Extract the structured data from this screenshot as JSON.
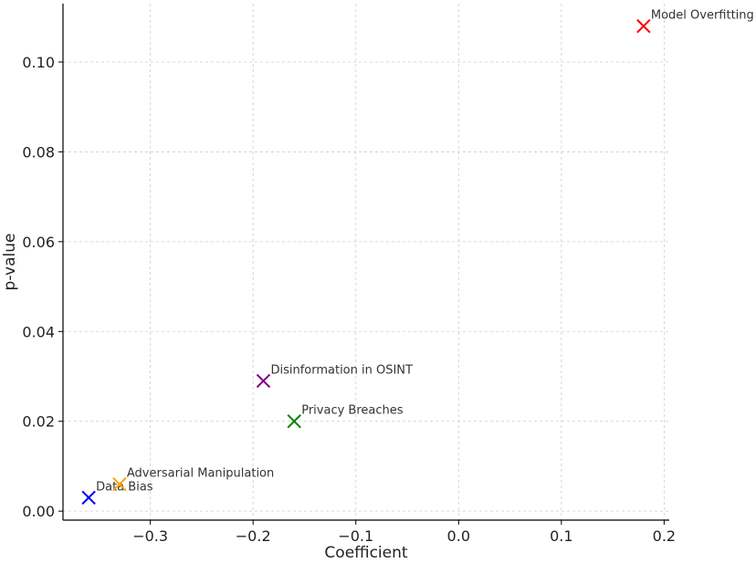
{
  "chart_data": {
    "type": "scatter",
    "title": "",
    "xlabel": "Coefficient",
    "ylabel": "p-value",
    "xlim": [
      -0.385,
      0.205
    ],
    "ylim": [
      -0.002,
      0.113
    ],
    "xticks": [
      -0.3,
      -0.2,
      -0.1,
      0.0,
      0.1,
      0.2
    ],
    "xtick_labels": [
      "−0.3",
      "−0.2",
      "−0.1",
      "0.0",
      "0.1",
      "0.2"
    ],
    "yticks": [
      0.0,
      0.02,
      0.04,
      0.06,
      0.08,
      0.1
    ],
    "ytick_labels": [
      "0.00",
      "0.02",
      "0.04",
      "0.06",
      "0.08",
      "0.10"
    ],
    "grid": true,
    "marker": "x",
    "points": [
      {
        "label": "Data Bias",
        "x": -0.36,
        "y": 0.003,
        "color": "#0000ff"
      },
      {
        "label": "Adversarial Manipulation",
        "x": -0.33,
        "y": 0.006,
        "color": "#ffa500"
      },
      {
        "label": "Disinformation in OSINT",
        "x": -0.19,
        "y": 0.029,
        "color": "#800080"
      },
      {
        "label": "Privacy Breaches",
        "x": -0.16,
        "y": 0.02,
        "color": "#008000"
      },
      {
        "label": "Model Overfitting",
        "x": 0.18,
        "y": 0.108,
        "color": "#ff0000"
      }
    ]
  }
}
